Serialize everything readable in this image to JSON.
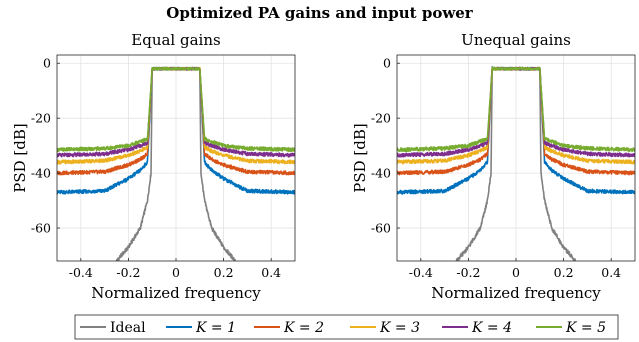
{
  "title": "Optimized PA gains and input power",
  "colors": {
    "Ideal": "#808080",
    "K1": "#0072BD",
    "K2": "#D95319",
    "K3": "#EDB120",
    "K4": "#7E2F8E",
    "K5": "#77AC30"
  },
  "legend": {
    "entries": [
      {
        "label": "Ideal",
        "math": false
      },
      {
        "label": "K = 1",
        "math": true
      },
      {
        "label": "K = 2",
        "math": true
      },
      {
        "label": "K = 3",
        "math": true
      },
      {
        "label": "K = 4",
        "math": true
      },
      {
        "label": "K = 5",
        "math": true
      }
    ]
  },
  "chart_data": [
    {
      "type": "line",
      "title": "Equal gains",
      "xlabel": "Normalized frequency",
      "ylabel": "PSD [dB]",
      "xlim": [
        -0.5,
        0.5
      ],
      "ylim": [
        -72,
        3
      ],
      "xticks": [
        -0.4,
        -0.2,
        0,
        0.2,
        0.4
      ],
      "xtick_labels": [
        "-0.4",
        "-0.2",
        "0",
        "0.2",
        "0.4"
      ],
      "yticks": [
        0,
        -20,
        -40,
        -60
      ],
      "ytick_labels": [
        "0",
        "-20",
        "-40",
        "-60"
      ],
      "grid": true,
      "series": [
        {
          "name": "Ideal",
          "x": [
            -0.25,
            -0.2,
            -0.15,
            -0.12,
            -0.105,
            -0.1,
            0.1,
            0.105,
            0.12,
            0.15,
            0.2,
            0.25
          ],
          "values": [
            -72,
            -67,
            -60,
            -50,
            -40,
            -2,
            -2,
            -40,
            -50,
            -60,
            -67,
            -72
          ]
        },
        {
          "name": "K = 1",
          "x": [
            -0.5,
            -0.3,
            -0.2,
            -0.15,
            -0.12,
            -0.1,
            0.1,
            0.12,
            0.15,
            0.2,
            0.3,
            0.5
          ],
          "values": [
            -47,
            -46.5,
            -42,
            -39,
            -36,
            -2,
            -2,
            -36,
            -39,
            -42,
            -46.5,
            -47
          ]
        },
        {
          "name": "K = 2",
          "x": [
            -0.5,
            -0.3,
            -0.2,
            -0.15,
            -0.12,
            -0.1,
            0.1,
            0.12,
            0.15,
            0.2,
            0.3,
            0.5
          ],
          "values": [
            -40,
            -39.5,
            -37,
            -35,
            -33,
            -2,
            -2,
            -33,
            -35,
            -37,
            -39.5,
            -40
          ]
        },
        {
          "name": "K = 3",
          "x": [
            -0.5,
            -0.3,
            -0.2,
            -0.15,
            -0.12,
            -0.1,
            0.1,
            0.12,
            0.15,
            0.2,
            0.3,
            0.5
          ],
          "values": [
            -36,
            -35.5,
            -33.5,
            -32,
            -30.5,
            -2,
            -2,
            -30.5,
            -32,
            -33.5,
            -35.5,
            -36
          ]
        },
        {
          "name": "K = 4",
          "x": [
            -0.5,
            -0.3,
            -0.2,
            -0.15,
            -0.12,
            -0.1,
            0.1,
            0.12,
            0.15,
            0.2,
            0.3,
            0.5
          ],
          "values": [
            -33.5,
            -33,
            -31.5,
            -30,
            -29,
            -2,
            -2,
            -29,
            -30,
            -31.5,
            -33,
            -33.5
          ]
        },
        {
          "name": "K = 5",
          "x": [
            -0.5,
            -0.3,
            -0.2,
            -0.15,
            -0.12,
            -0.1,
            0.1,
            0.12,
            0.15,
            0.2,
            0.3,
            0.5
          ],
          "values": [
            -31.5,
            -31,
            -30,
            -28.5,
            -27.5,
            -2,
            -2,
            -27.5,
            -28.5,
            -30,
            -31,
            -31.5
          ]
        }
      ]
    },
    {
      "type": "line",
      "title": "Unequal gains",
      "xlabel": "Normalized frequency",
      "ylabel": "PSD [dB]",
      "xlim": [
        -0.5,
        0.5
      ],
      "ylim": [
        -72,
        3
      ],
      "xticks": [
        -0.4,
        -0.2,
        0,
        0.2,
        0.4
      ],
      "xtick_labels": [
        "-0.4",
        "-0.2",
        "0",
        "0.2",
        "0.4"
      ],
      "yticks": [
        0,
        -20,
        -40,
        -60
      ],
      "ytick_labels": [
        "0",
        "-20",
        "-40",
        "-60"
      ],
      "grid": true,
      "series": [
        {
          "name": "Ideal",
          "x": [
            -0.25,
            -0.2,
            -0.15,
            -0.12,
            -0.105,
            -0.1,
            0.1,
            0.105,
            0.12,
            0.15,
            0.2,
            0.25
          ],
          "values": [
            -72,
            -67,
            -60,
            -50,
            -40,
            -2,
            -2,
            -40,
            -50,
            -60,
            -67,
            -72
          ]
        },
        {
          "name": "K = 1",
          "x": [
            -0.5,
            -0.3,
            -0.2,
            -0.15,
            -0.12,
            -0.1,
            0.1,
            0.12,
            0.15,
            0.2,
            0.3,
            0.5
          ],
          "values": [
            -47,
            -46.5,
            -42,
            -39,
            -36,
            -2,
            -2,
            -36,
            -39,
            -42,
            -46.5,
            -47
          ]
        },
        {
          "name": "K = 2",
          "x": [
            -0.5,
            -0.3,
            -0.2,
            -0.15,
            -0.12,
            -0.1,
            0.1,
            0.12,
            0.15,
            0.2,
            0.3,
            0.5
          ],
          "values": [
            -40,
            -39.5,
            -37,
            -35,
            -33,
            -2,
            -2,
            -33,
            -35,
            -37,
            -39.5,
            -40
          ]
        },
        {
          "name": "K = 3",
          "x": [
            -0.5,
            -0.3,
            -0.2,
            -0.15,
            -0.12,
            -0.1,
            0.1,
            0.12,
            0.15,
            0.2,
            0.3,
            0.5
          ],
          "values": [
            -36,
            -35.5,
            -33.5,
            -32,
            -30.5,
            -2,
            -2,
            -30.5,
            -32,
            -33.5,
            -35.5,
            -36
          ]
        },
        {
          "name": "K = 4",
          "x": [
            -0.5,
            -0.3,
            -0.2,
            -0.15,
            -0.12,
            -0.1,
            0.1,
            0.12,
            0.15,
            0.2,
            0.3,
            0.5
          ],
          "values": [
            -33.5,
            -33,
            -31.5,
            -30,
            -29,
            -2,
            -2,
            -29,
            -30,
            -31.5,
            -33,
            -33.5
          ]
        },
        {
          "name": "K = 5",
          "x": [
            -0.5,
            -0.3,
            -0.2,
            -0.15,
            -0.12,
            -0.1,
            0.1,
            0.12,
            0.15,
            0.2,
            0.3,
            0.5
          ],
          "values": [
            -31.5,
            -31,
            -30,
            -28.5,
            -27.5,
            -2,
            -2,
            -27.5,
            -28.5,
            -30,
            -31,
            -31.5
          ]
        }
      ]
    }
  ]
}
